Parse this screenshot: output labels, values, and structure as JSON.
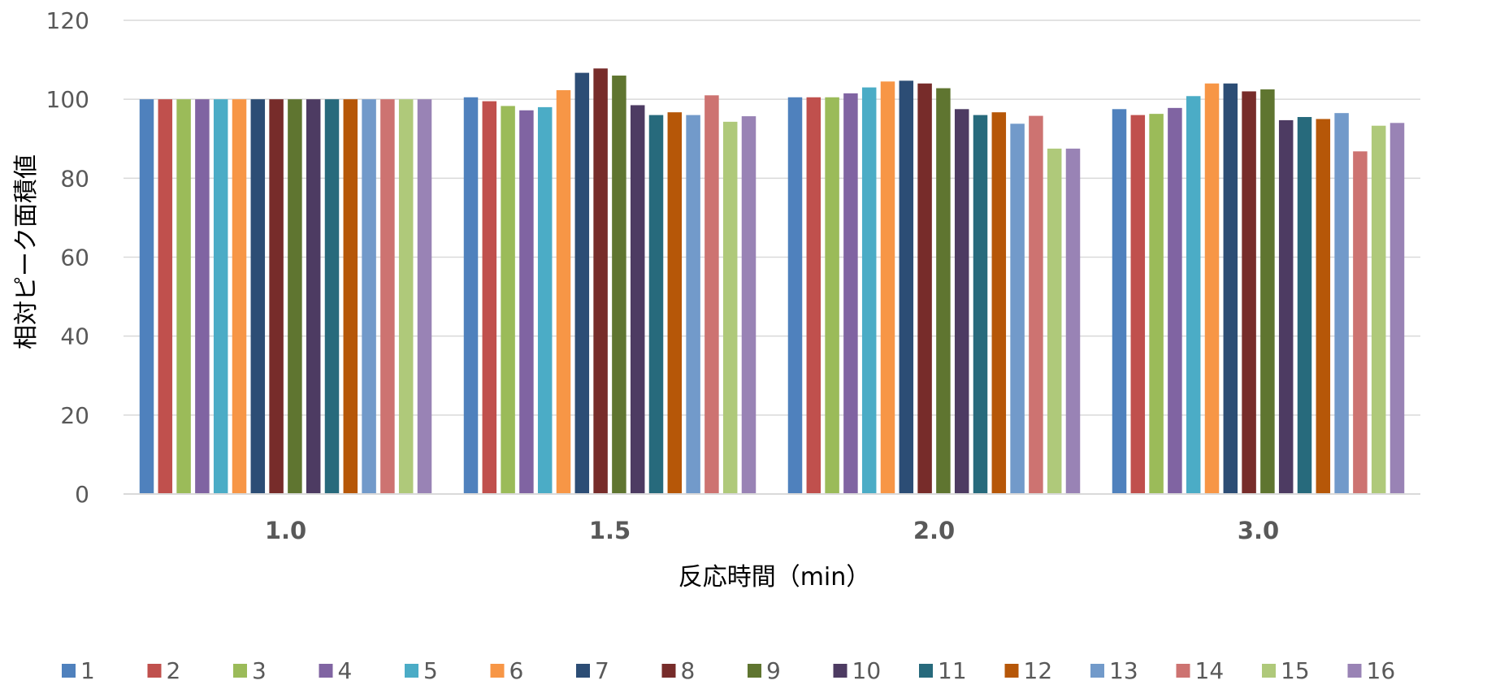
{
  "chart_data": {
    "type": "bar",
    "title": "",
    "xlabel": "反応時間（min）",
    "ylabel": "相対ピーク面積値",
    "ylim": [
      0,
      120
    ],
    "yticks": [
      "0",
      "20",
      "40",
      "60",
      "80",
      "100",
      "120"
    ],
    "grid": true,
    "legend_position": "bottom",
    "categories": [
      "1.0",
      "1.5",
      "2.0",
      "3.0"
    ],
    "series": [
      {
        "name": "1",
        "color": "#4F81BD",
        "values": [
          100,
          100.5,
          100.5,
          97.5
        ]
      },
      {
        "name": "2",
        "color": "#C0504D",
        "values": [
          100,
          99.5,
          100.5,
          96.0
        ]
      },
      {
        "name": "3",
        "color": "#9BBB59",
        "values": [
          100,
          98.3,
          100.5,
          96.3
        ]
      },
      {
        "name": "4",
        "color": "#8064A2",
        "values": [
          100,
          97.2,
          101.5,
          97.8
        ]
      },
      {
        "name": "5",
        "color": "#4BACC6",
        "values": [
          100,
          98.0,
          103.0,
          100.8
        ]
      },
      {
        "name": "6",
        "color": "#F79646",
        "values": [
          100,
          102.3,
          104.5,
          104.0
        ]
      },
      {
        "name": "7",
        "color": "#2C4D75",
        "values": [
          100,
          106.7,
          104.7,
          104.0
        ]
      },
      {
        "name": "8",
        "color": "#772C2A",
        "values": [
          100,
          107.8,
          104.0,
          102.0
        ]
      },
      {
        "name": "9",
        "color": "#5F7530",
        "values": [
          100,
          106.0,
          102.8,
          102.5
        ]
      },
      {
        "name": "10",
        "color": "#4D3B62",
        "values": [
          100,
          98.5,
          97.5,
          94.7
        ]
      },
      {
        "name": "11",
        "color": "#276A7C",
        "values": [
          100,
          96.0,
          96.0,
          95.5
        ]
      },
      {
        "name": "12",
        "color": "#B65708",
        "values": [
          100,
          96.7,
          96.7,
          95.0
        ]
      },
      {
        "name": "13",
        "color": "#729ACA",
        "values": [
          100,
          96.0,
          93.8,
          96.5
        ]
      },
      {
        "name": "14",
        "color": "#CD7371",
        "values": [
          100,
          101.0,
          95.8,
          86.8
        ]
      },
      {
        "name": "15",
        "color": "#AFC97A",
        "values": [
          100,
          94.3,
          87.5,
          93.3
        ]
      },
      {
        "name": "16",
        "color": "#9983B5",
        "values": [
          100,
          95.7,
          87.5,
          94.0
        ]
      }
    ]
  }
}
